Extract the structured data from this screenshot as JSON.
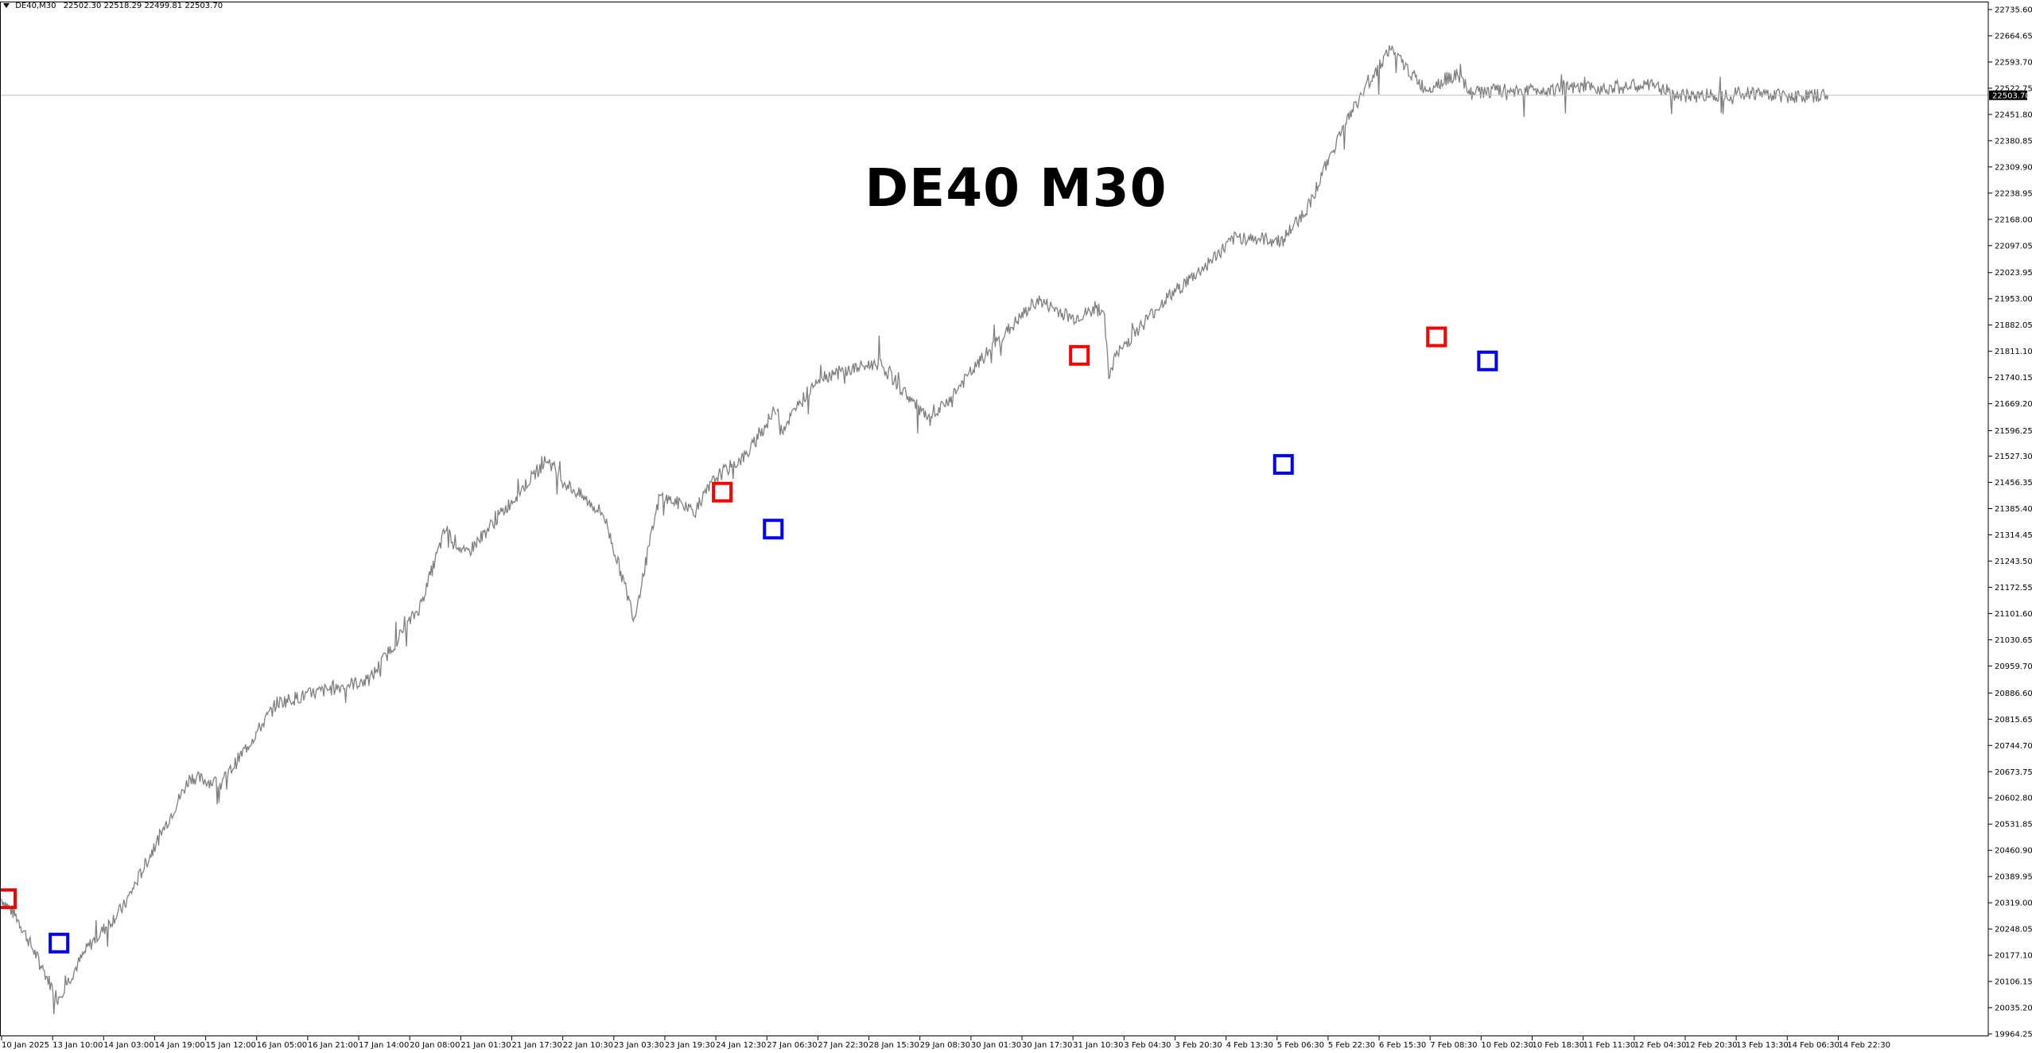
{
  "header": {
    "symbol": "DE40,M30",
    "ohlc": "22502.30 22518.29 22499.81 22503.70"
  },
  "overlay_title": "DE40 M30",
  "chart_data": {
    "type": "line",
    "symbol": "DE40",
    "timeframe": "M30",
    "price_line_color": "#808080",
    "current_price": "22503.70",
    "current_price_value": 22503.7,
    "ylim": [
      19964.25,
      22735.6
    ],
    "y_ticks": [
      "22735.60",
      "22664.65",
      "22593.70",
      "22522.75",
      "22451.80",
      "22380.85",
      "22309.90",
      "22238.95",
      "22168.00",
      "22097.05",
      "22023.95",
      "21953.00",
      "21882.05",
      "21811.10",
      "21740.15",
      "21669.20",
      "21596.25",
      "21527.30",
      "21456.35",
      "21385.40",
      "21314.45",
      "21243.50",
      "21172.55",
      "21101.60",
      "21030.65",
      "20959.70",
      "20886.60",
      "20815.65",
      "20744.70",
      "20673.75",
      "20602.80",
      "20531.85",
      "20460.90",
      "20389.95",
      "20319.00",
      "20248.05",
      "20177.10",
      "20106.15",
      "20035.20",
      "19964.25"
    ],
    "x_ticks": [
      "10 Jan 2025",
      "13 Jan 10:00",
      "14 Jan 03:00",
      "14 Jan 19:00",
      "15 Jan 12:00",
      "16 Jan 05:00",
      "16 Jan 21:00",
      "17 Jan 14:00",
      "20 Jan 08:00",
      "21 Jan 01:30",
      "21 Jan 17:30",
      "22 Jan 10:30",
      "23 Jan 03:30",
      "23 Jan 19:30",
      "24 Jan 12:30",
      "27 Jan 06:30",
      "27 Jan 22:30",
      "28 Jan 15:30",
      "29 Jan 08:30",
      "30 Jan 01:30",
      "30 Jan 17:30",
      "31 Jan 10:30",
      "3 Feb 04:30",
      "3 Feb 20:30",
      "4 Feb 13:30",
      "5 Feb 06:30",
      "5 Feb 22:30",
      "6 Feb 15:30",
      "7 Feb 08:30",
      "10 Feb 02:30",
      "10 Feb 18:30",
      "11 Feb 11:30",
      "12 Feb 04:30",
      "12 Feb 20:30",
      "13 Feb 13:30",
      "14 Feb 06:30",
      "14 Feb 22:30"
    ],
    "series": [
      {
        "key_points_x_index": [
          0,
          0.3,
          1.1,
          1.7,
          2.4,
          3.7,
          4.3,
          5.4,
          6.8,
          7.2,
          8.2,
          8.7,
          9.1,
          10.7,
          11.0,
          11.8,
          12.4,
          12.9,
          13.6,
          14.0,
          14.6,
          15.2,
          15.3,
          16.0,
          17.2,
          18.2,
          19.4,
          20.3,
          21.0,
          21.6,
          21.7,
          21.8,
          22.2,
          22.8,
          23.5,
          24.2,
          25.1,
          25.6,
          26.3,
          27.2,
          27.9,
          28.5,
          28.8,
          29.2,
          30.5,
          31.5,
          32.4,
          32.9,
          33.5,
          34.3,
          35.2,
          35.8
        ],
        "values": [
          20330,
          20280,
          20060,
          20200,
          20310,
          20660,
          20640,
          20860,
          20910,
          20920,
          21120,
          21330,
          21260,
          21520,
          21460,
          21370,
          21090,
          21420,
          21380,
          21470,
          21530,
          21660,
          21600,
          21740,
          21780,
          21620,
          21820,
          21950,
          21900,
          21930,
          21740,
          21790,
          21860,
          21950,
          22030,
          22120,
          22110,
          22200,
          22420,
          22630,
          22520,
          22560,
          22510,
          22515,
          22520,
          22525,
          22530,
          22500,
          22505,
          22510,
          22500,
          22503.7
        ]
      }
    ],
    "buy_markers": [
      {
        "x_label": "13 Jan 10:00",
        "value": 20210
      },
      {
        "x_label": "27 Jan 06:30",
        "value": 21330
      },
      {
        "x_label": "5 Feb 06:30",
        "value": 21505
      },
      {
        "x_label": "10 Feb 02:30",
        "value": 21785
      }
    ],
    "sell_markers": [
      {
        "x_label": "10 Jan 2025",
        "value": 20330
      },
      {
        "x_label": "24 Jan 12:30",
        "value": 21430
      },
      {
        "x_label": "31 Jan 10:30",
        "value": 21800
      },
      {
        "x_label": "7 Feb 08:30",
        "value": 21850
      }
    ],
    "buy_color": "#0000ff",
    "sell_color": "#ff0000"
  }
}
